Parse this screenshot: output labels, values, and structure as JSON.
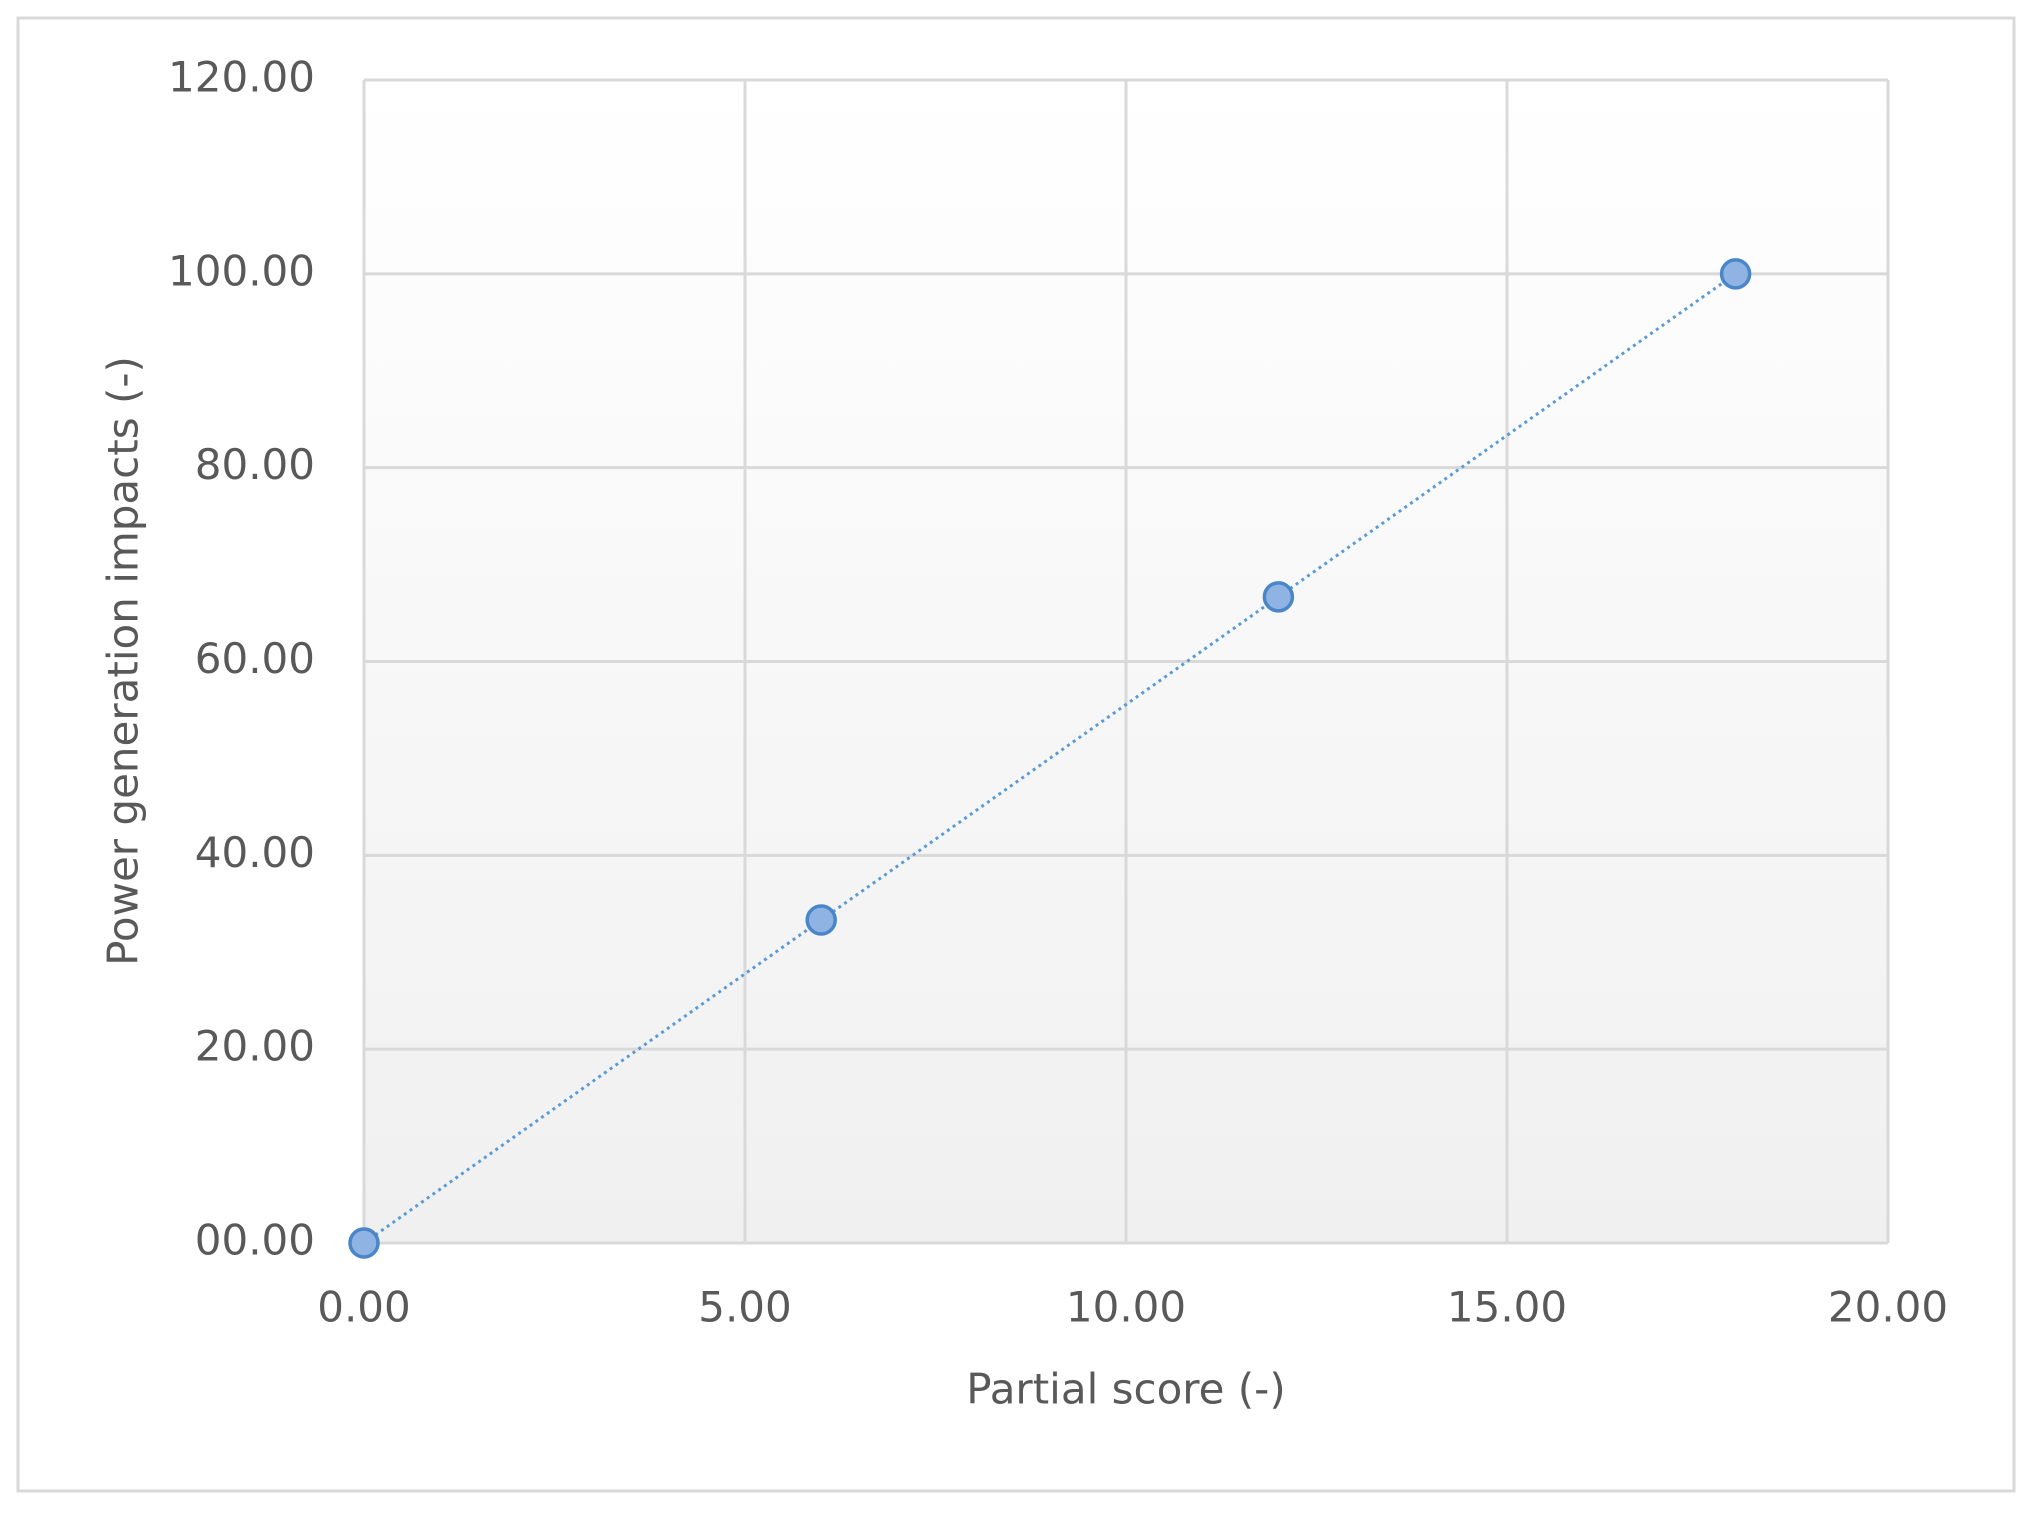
{
  "chart_data": {
    "type": "scatter",
    "x_label": "Partial score (-)",
    "y_label": "Power generation impacts (-)",
    "x": [
      0,
      6,
      12,
      18
    ],
    "series": [
      {
        "color": "#5b9bd5",
        "marker_fill": "#8fb4e3",
        "marker_edge": "#4a86c8",
        "values": [
          0,
          33.33,
          66.67,
          100
        ]
      }
    ],
    "line": "dotted",
    "xlim": [
      0,
      20
    ],
    "xticks": [
      {
        "value": 0,
        "label": "0.00"
      },
      {
        "value": 5,
        "label": "5.00"
      },
      {
        "value": 10,
        "label": "10.00"
      },
      {
        "value": 15,
        "label": "15.00"
      },
      {
        "value": 20,
        "label": "20.00"
      }
    ],
    "ylim": [
      0,
      120
    ],
    "yticks": [
      {
        "value": 0,
        "label": "00.00"
      },
      {
        "value": 20,
        "label": "20.00"
      },
      {
        "value": 40,
        "label": "40.00"
      },
      {
        "value": 60,
        "label": "60.00"
      },
      {
        "value": 80,
        "label": "80.00"
      },
      {
        "value": 100,
        "label": "100.00"
      },
      {
        "value": 120,
        "label": "120.00"
      }
    ],
    "grid": true
  }
}
